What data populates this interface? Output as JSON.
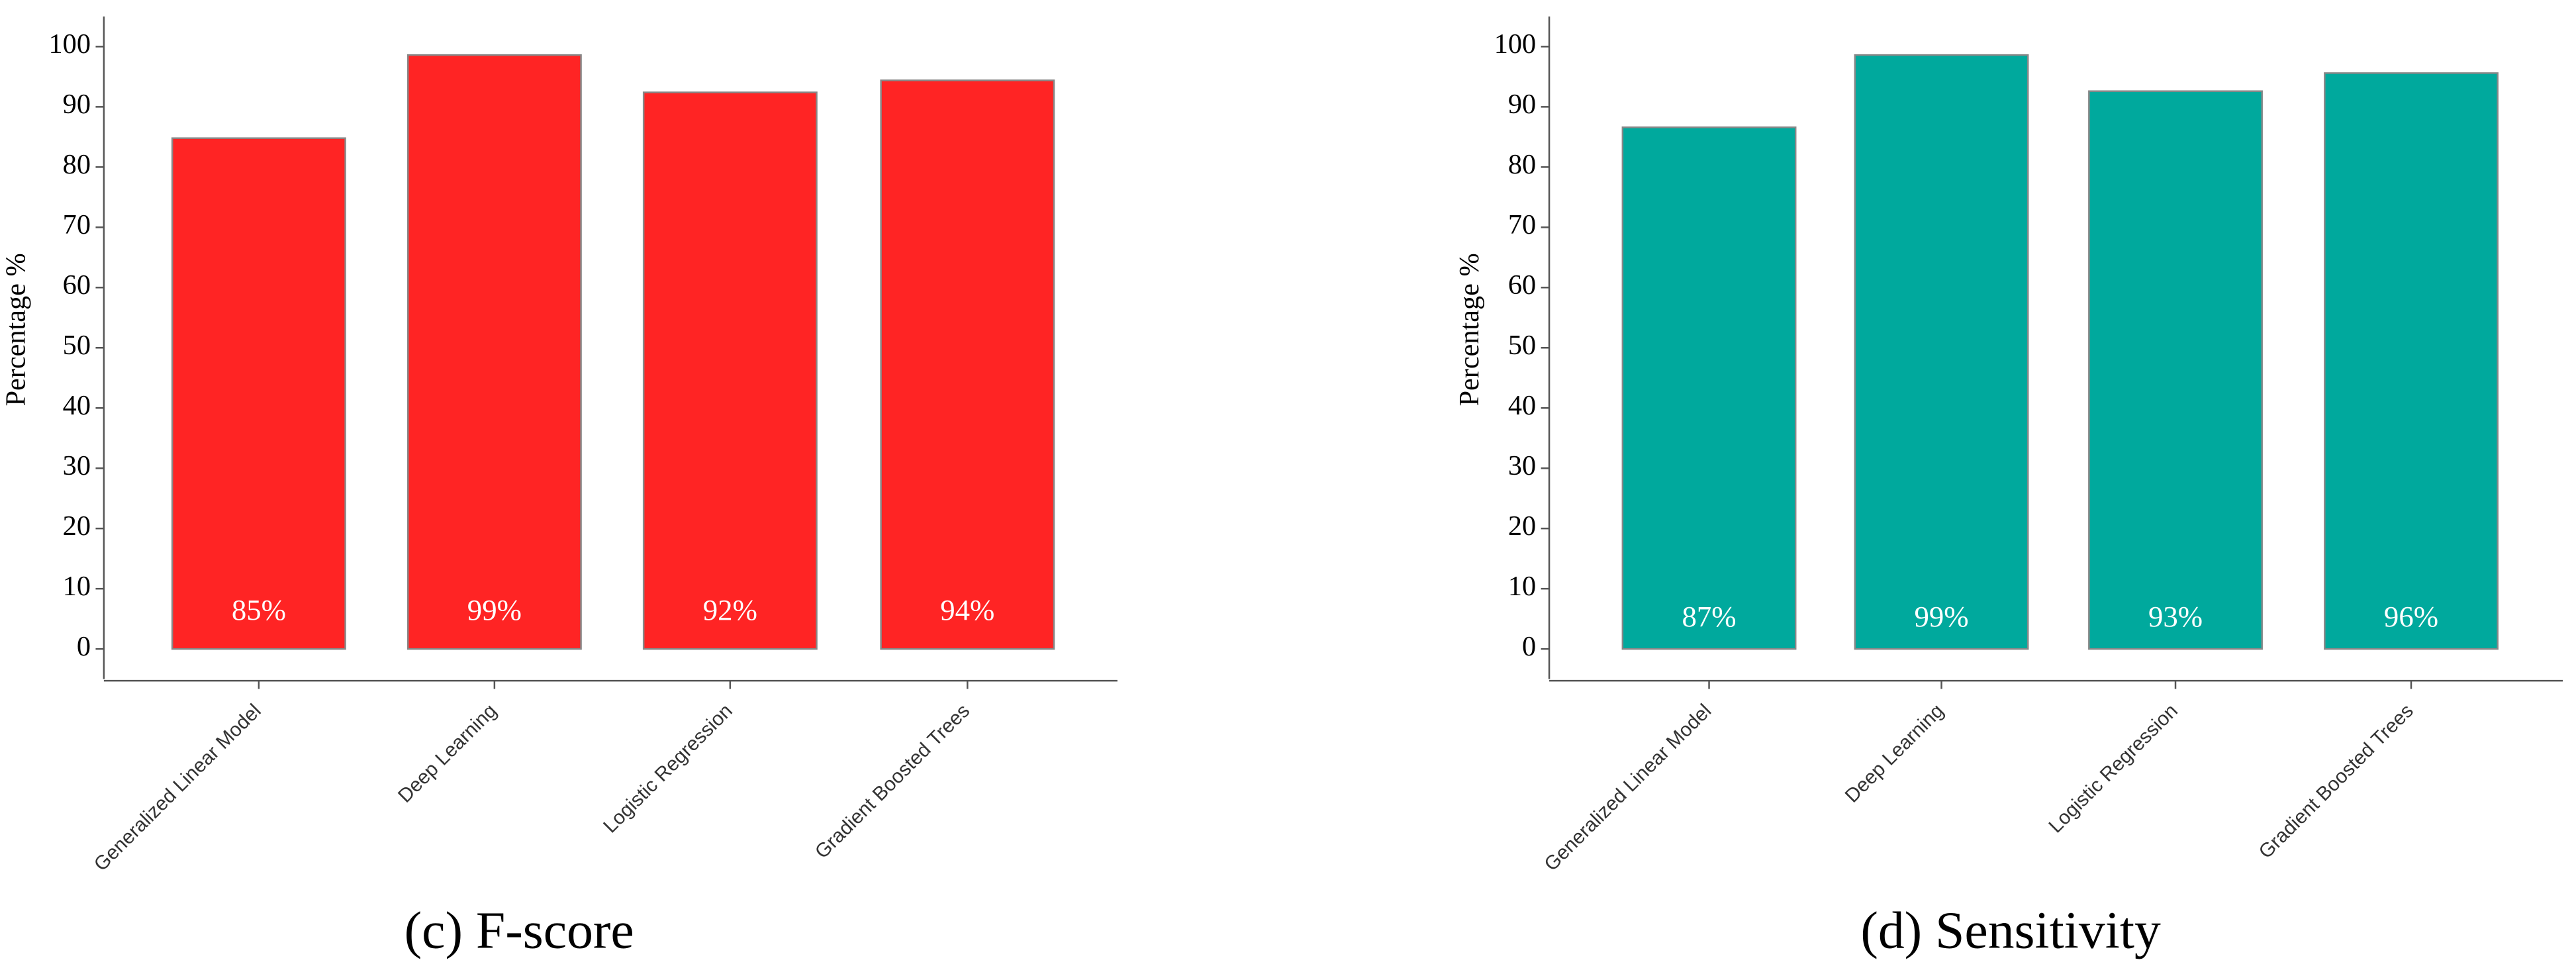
{
  "chart_data": [
    {
      "type": "bar",
      "caption": "(c) F-score",
      "ylabel": "Percentage %",
      "categories": [
        "Generalized Linear Model",
        "Deep Learning",
        "Logistic Regression",
        "Gradient Boosted Trees"
      ],
      "values": [
        84.8,
        98.6,
        92.4,
        94.4
      ],
      "value_labels": [
        "85%",
        "99%",
        "92%",
        "94%"
      ],
      "color": "#ff2424",
      "ylim": [
        -5,
        105
      ],
      "yticks": [
        0,
        10,
        20,
        30,
        40,
        50,
        60,
        70,
        80,
        90,
        100
      ]
    },
    {
      "type": "bar",
      "caption": "(d) Sensitivity",
      "ylabel": "Percentage %",
      "categories": [
        "Generalized Linear Model",
        "Deep Learning",
        "Logistic Regression",
        "Gradient Boosted Trees"
      ],
      "values": [
        86.6,
        98.6,
        92.6,
        95.6
      ],
      "value_labels": [
        "87%",
        "99%",
        "93%",
        "96%"
      ],
      "color": "#00a99d",
      "ylim": [
        -5,
        105
      ],
      "yticks": [
        0,
        10,
        20,
        30,
        40,
        50,
        60,
        70,
        80,
        90,
        100
      ]
    }
  ]
}
